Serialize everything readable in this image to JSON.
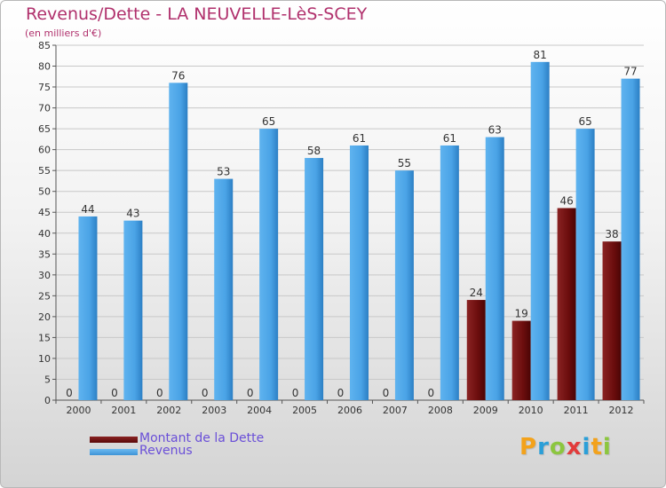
{
  "title": "Revenus/Dette - LA NEUVELLE-LèS-SCEY",
  "subtitle": "(en milliers d'€)",
  "logo": {
    "letters": [
      "P",
      "r",
      "o",
      "x",
      "i",
      "t",
      "i"
    ],
    "colors": [
      "#f3a21b",
      "#2b9fd8",
      "#8cc63f",
      "#e23b3b",
      "#2b9fd8",
      "#f3a21b",
      "#8cc63f"
    ]
  },
  "legend": [
    {
      "label": "Montant de la Dette",
      "color": "#6b0d0d"
    },
    {
      "label": "Revenus",
      "color": "#4aa3e6"
    }
  ],
  "chart_data": {
    "type": "bar",
    "title": "Revenus/Dette - LA NEUVELLE-LèS-SCEY",
    "subtitle": "(en milliers d'€)",
    "categories": [
      "2000",
      "2001",
      "2002",
      "2003",
      "2004",
      "2005",
      "2006",
      "2007",
      "2008",
      "2009",
      "2010",
      "2011",
      "2012"
    ],
    "series": [
      {
        "name": "Montant de la Dette",
        "color": "#6b0d0d",
        "values": [
          0,
          0,
          0,
          0,
          0,
          0,
          0,
          0,
          0,
          24,
          19,
          46,
          38
        ]
      },
      {
        "name": "Revenus",
        "color": "#4aa3e6",
        "values": [
          44,
          43,
          76,
          53,
          65,
          58,
          61,
          55,
          61,
          63,
          81,
          65,
          77
        ]
      }
    ],
    "ylim": [
      0,
      85
    ],
    "yticks": [
      0,
      5,
      10,
      15,
      20,
      25,
      30,
      35,
      40,
      45,
      50,
      55,
      60,
      65,
      70,
      75,
      80,
      85
    ],
    "grid": true,
    "legend_position": "bottom-left"
  }
}
